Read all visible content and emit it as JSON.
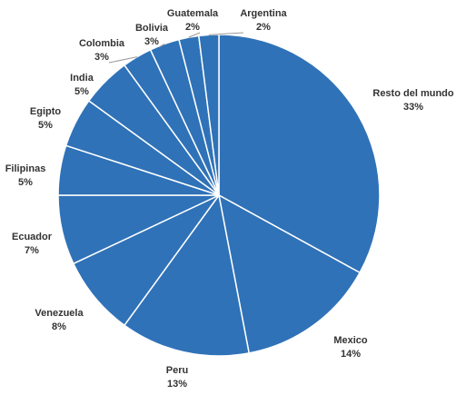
{
  "chart_data": {
    "type": "pie",
    "color": "#2f72b8",
    "categories": [
      "Resto del mundo",
      "Mexico",
      "Peru",
      "Venezuela",
      "Ecuador",
      "Filipinas",
      "Egipto",
      "India",
      "Colombia",
      "Bolivia",
      "Guatemala",
      "Argentina"
    ],
    "values": [
      33,
      14,
      13,
      8,
      7,
      5,
      5,
      5,
      3,
      3,
      2,
      2
    ],
    "value_labels": [
      "33%",
      "14%",
      "13%",
      "8%",
      "7%",
      "5%",
      "5%",
      "5%",
      "3%",
      "3%",
      "2%",
      "2%"
    ]
  }
}
